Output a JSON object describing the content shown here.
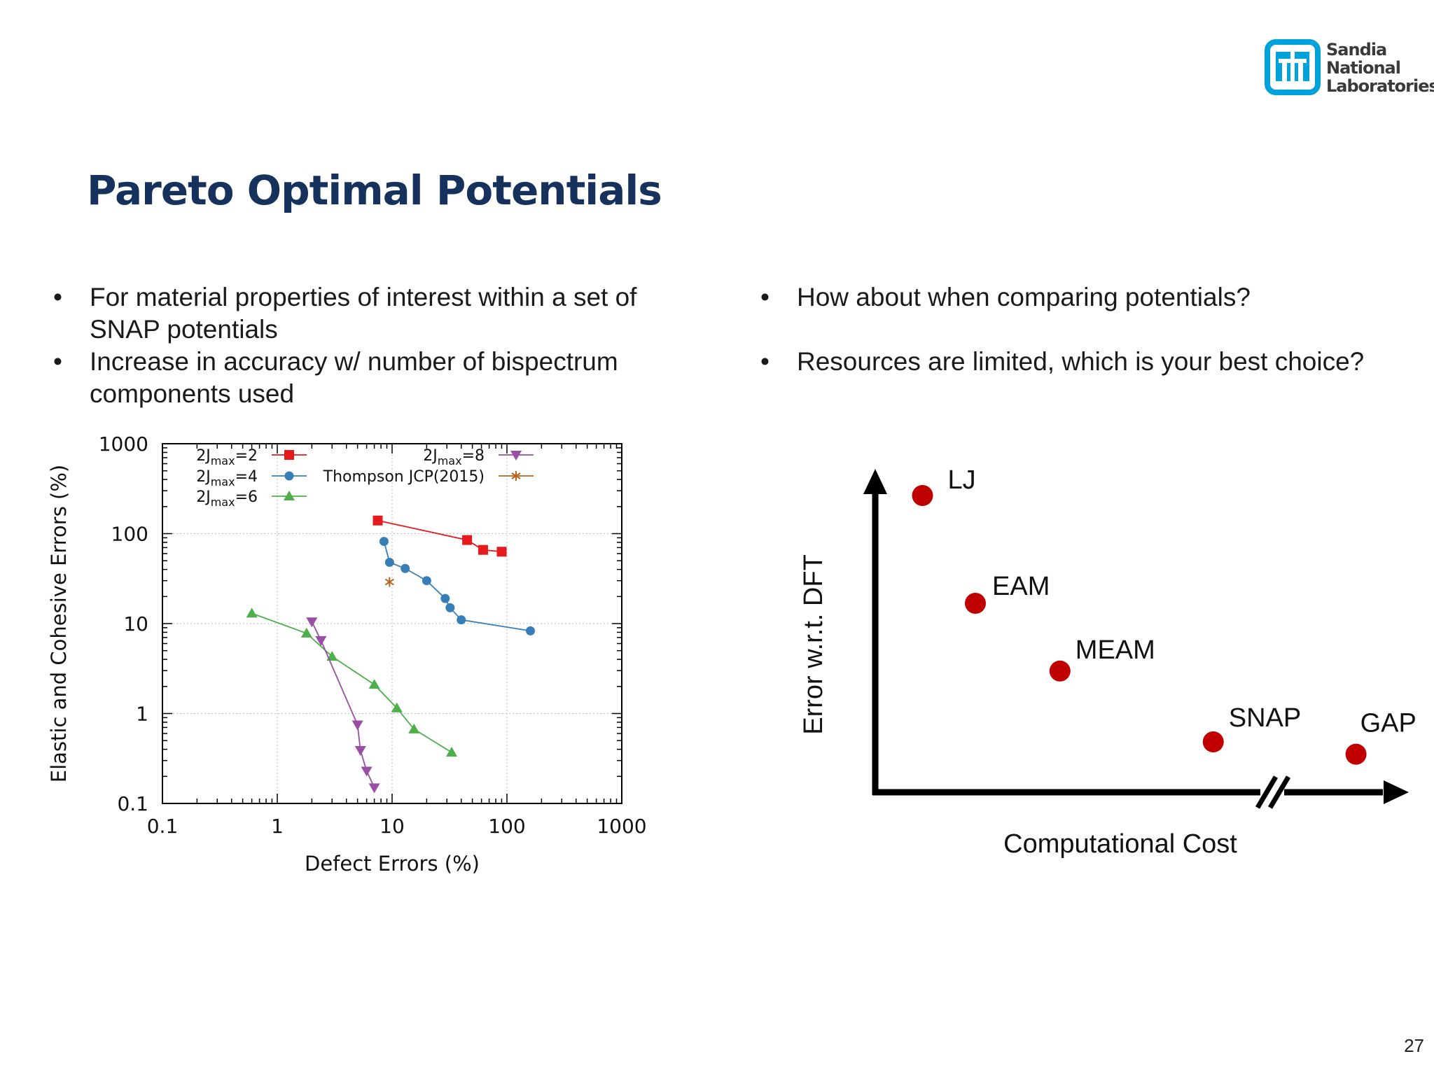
{
  "logo": {
    "line1": "Sandia",
    "line2": "National",
    "line3": "Laboratories",
    "color": "#00a3d9"
  },
  "title": "Pareto Optimal Potentials",
  "left_bullets": [
    "For material properties of interest within a set of SNAP potentials",
    "Increase in accuracy w/ number of bispectrum components used"
  ],
  "right_bullets": [
    "How about when comparing potentials?",
    "Resources are limited, which is your best choice?"
  ],
  "page_number": "27",
  "chart_data": [
    {
      "type": "line",
      "scale": "log-log",
      "xlabel": "Defect Errors (%)",
      "ylabel": "Elastic and Cohesive Errors (%)",
      "xlim": [
        0.1,
        1000
      ],
      "ylim": [
        0.1,
        1000
      ],
      "xticks": [
        "0.1",
        "1",
        "10",
        "100",
        "1000"
      ],
      "yticks": [
        "0.1",
        "1",
        "10",
        "100",
        "1000"
      ],
      "grid": true,
      "legend_position": "top",
      "series": [
        {
          "name": "2Jmax=2",
          "name_base": "2J",
          "name_sub": "max",
          "name_suffix": "=2",
          "color": "#e41a1c",
          "marker": "square",
          "points": [
            [
              7.5,
              140
            ],
            [
              45,
              85
            ],
            [
              62,
              66
            ],
            [
              90,
              63
            ]
          ]
        },
        {
          "name": "2Jmax=4",
          "name_base": "2J",
          "name_sub": "max",
          "name_suffix": "=4",
          "color": "#377eb8",
          "marker": "circle",
          "points": [
            [
              8.5,
              82
            ],
            [
              9.5,
              48
            ],
            [
              13,
              41
            ],
            [
              20,
              30
            ],
            [
              29,
              19
            ],
            [
              32,
              15
            ],
            [
              40,
              11
            ],
            [
              160,
              8.3
            ]
          ]
        },
        {
          "name": "2Jmax=6",
          "name_base": "2J",
          "name_sub": "max",
          "name_suffix": "=6",
          "color": "#4daf4a",
          "marker": "triangle-up",
          "points": [
            [
              0.6,
              13
            ],
            [
              1.8,
              7.8
            ],
            [
              3,
              4.3
            ],
            [
              7,
              2.1
            ],
            [
              11,
              1.15
            ],
            [
              15.5,
              0.67
            ],
            [
              33,
              0.37
            ]
          ]
        },
        {
          "name": "2Jmax=8",
          "name_base": "2J",
          "name_sub": "max",
          "name_suffix": "=8",
          "color": "#984ea3",
          "marker": "triangle-down",
          "points": [
            [
              2,
              10.5
            ],
            [
              2.4,
              6.5
            ],
            [
              5,
              0.75
            ],
            [
              5.3,
              0.39
            ],
            [
              6,
              0.23
            ],
            [
              7,
              0.15
            ]
          ]
        },
        {
          "name": "Thompson JCP(2015)",
          "name_base": "Thompson JCP(2015)",
          "name_sub": "",
          "name_suffix": "",
          "color": "#b5651d",
          "marker": "asterisk",
          "points": [
            [
              9.5,
              29
            ]
          ]
        }
      ]
    },
    {
      "type": "scatter",
      "xlabel": "Computational Cost",
      "ylabel": "Error w.r.t. DFT",
      "point_color": "#c00000",
      "axis_break_on_x": true,
      "points": [
        {
          "label": "LJ",
          "x": 1,
          "y": 9
        },
        {
          "label": "EAM",
          "x": 2,
          "y": 5.5
        },
        {
          "label": "MEAM",
          "x": 3.6,
          "y": 3.3
        },
        {
          "label": "SNAP",
          "x": 6.5,
          "y": 1
        },
        {
          "label": "GAP",
          "x": 9.2,
          "y": 0.6
        }
      ]
    }
  ]
}
